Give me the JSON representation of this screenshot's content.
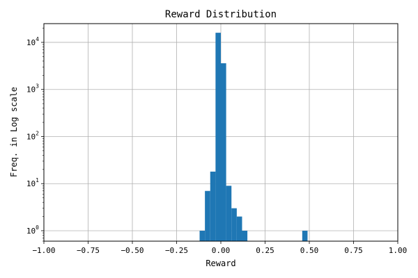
{
  "chart_data": {
    "type": "bar",
    "title": "Reward Distribution",
    "xlabel": "Reward",
    "ylabel": "Freq. in Log scale",
    "xlim": [
      -1.0,
      1.0
    ],
    "ylim": [
      0.6,
      25000
    ],
    "yscale": "log",
    "grid": true,
    "bar_color": "#1f77b4",
    "x_ticks": [
      {
        "value": -1.0,
        "label": "−1.00"
      },
      {
        "value": -0.75,
        "label": "−0.75"
      },
      {
        "value": -0.5,
        "label": "−0.50"
      },
      {
        "value": -0.25,
        "label": "−0.25"
      },
      {
        "value": 0.0,
        "label": "0.00"
      },
      {
        "value": 0.25,
        "label": "0.25"
      },
      {
        "value": 0.5,
        "label": "0.50"
      },
      {
        "value": 0.75,
        "label": "0.75"
      },
      {
        "value": 1.0,
        "label": "1.00"
      }
    ],
    "y_ticks": [
      {
        "value": 1,
        "base": "10",
        "exp": "0"
      },
      {
        "value": 10,
        "base": "10",
        "exp": "1"
      },
      {
        "value": 100,
        "base": "10",
        "exp": "2"
      },
      {
        "value": 1000,
        "base": "10",
        "exp": "3"
      },
      {
        "value": 10000,
        "base": "10",
        "exp": "4"
      }
    ],
    "bins": [
      {
        "x0": -0.12,
        "x1": -0.09,
        "value": 1
      },
      {
        "x0": -0.09,
        "x1": -0.06,
        "value": 7
      },
      {
        "x0": -0.06,
        "x1": -0.03,
        "value": 18
      },
      {
        "x0": -0.03,
        "x1": 0.0,
        "value": 16000
      },
      {
        "x0": 0.0,
        "x1": 0.03,
        "value": 3600
      },
      {
        "x0": 0.03,
        "x1": 0.06,
        "value": 9
      },
      {
        "x0": 0.06,
        "x1": 0.09,
        "value": 3
      },
      {
        "x0": 0.09,
        "x1": 0.12,
        "value": 2
      },
      {
        "x0": 0.12,
        "x1": 0.15,
        "value": 1
      },
      {
        "x0": 0.46,
        "x1": 0.49,
        "value": 1
      }
    ]
  }
}
